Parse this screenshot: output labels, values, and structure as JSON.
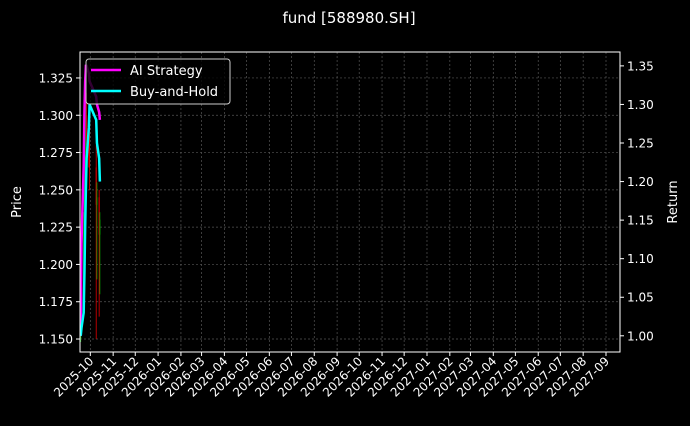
{
  "chart_data": {
    "type": "line",
    "title": "fund [588980.SH]",
    "ylabel": "Price",
    "y2label": "Return",
    "xlim": [
      "2025-09-17",
      "2027-09-20"
    ],
    "ylim": [
      1.1413,
      1.3424
    ],
    "y2lim": [
      0.979,
      1.368
    ],
    "grid": true,
    "legend_placement": "top-left",
    "xticks": [
      "2025-10",
      "2025-11",
      "2025-12",
      "2026-01",
      "2026-02",
      "2026-03",
      "2026-04",
      "2026-05",
      "2026-06",
      "2026-07",
      "2026-08",
      "2026-09",
      "2026-10",
      "2026-11",
      "2026-12",
      "2027-01",
      "2027-02",
      "2027-03",
      "2027-04",
      "2027-05",
      "2027-06",
      "2027-07",
      "2027-08",
      "2027-09"
    ],
    "yticks": [
      "1.150",
      "1.175",
      "1.200",
      "1.225",
      "1.250",
      "1.275",
      "1.300",
      "1.325"
    ],
    "y2ticks": [
      "1.00",
      "1.05",
      "1.10",
      "1.15",
      "1.20",
      "1.25",
      "1.30",
      "1.35"
    ],
    "dates": [
      "2025-09-18",
      "2025-09-19",
      "2025-09-22",
      "2025-09-23",
      "2025-09-24",
      "2025-09-25",
      "2025-09-26",
      "2025-09-29",
      "2025-09-30",
      "2025-10-09",
      "2025-10-10",
      "2025-10-13",
      "2025-10-14"
    ],
    "candles": {
      "open": [
        1.15,
        1.16,
        1.19,
        1.23,
        1.26,
        1.285,
        1.3,
        1.285,
        1.27,
        1.265,
        1.24,
        1.245,
        1.22
      ],
      "high": [
        1.165,
        1.195,
        1.235,
        1.265,
        1.29,
        1.31,
        1.315,
        1.3,
        1.29,
        1.28,
        1.255,
        1.25,
        1.235
      ],
      "low": [
        1.148,
        1.155,
        1.185,
        1.225,
        1.255,
        1.275,
        1.28,
        1.265,
        1.25,
        1.15,
        1.19,
        1.165,
        1.18
      ],
      "close": [
        1.16,
        1.19,
        1.23,
        1.26,
        1.285,
        1.3,
        1.285,
        1.27,
        1.265,
        1.24,
        1.245,
        1.22,
        1.23
      ],
      "up_color": "#00a000",
      "down_color": "#e00000"
    },
    "series": [
      {
        "name": "AI Strategy",
        "color": "#ff00ff",
        "values": [
          1.0,
          1.12,
          1.22,
          1.29,
          1.33,
          1.35,
          1.35,
          1.34,
          1.33,
          1.31,
          1.3,
          1.29,
          1.28
        ]
      },
      {
        "name": "Buy-and-Hold",
        "color": "#00ffff",
        "values": [
          1.0,
          1.01,
          1.03,
          1.08,
          1.14,
          1.19,
          1.23,
          1.27,
          1.3,
          1.28,
          1.25,
          1.23,
          1.2
        ]
      }
    ]
  }
}
